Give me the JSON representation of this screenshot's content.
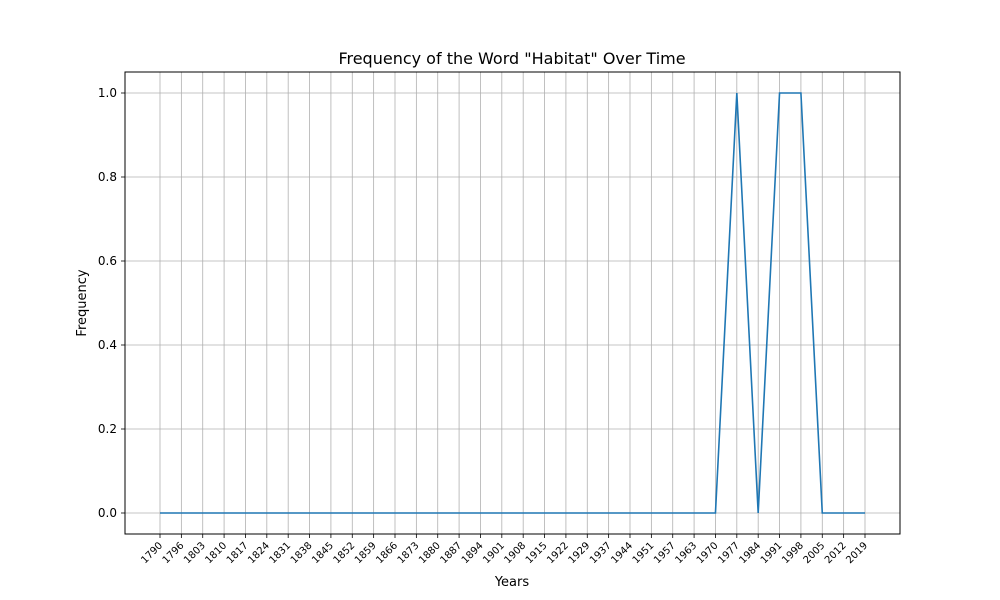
{
  "chart_data": {
    "type": "line",
    "title": "Frequency of the Word \"Habitat\" Over Time",
    "xlabel": "Years",
    "ylabel": "Frequency",
    "x": [
      "1790",
      "1796",
      "1803",
      "1810",
      "1817",
      "1824",
      "1831",
      "1838",
      "1845",
      "1852",
      "1859",
      "1866",
      "1873",
      "1880",
      "1887",
      "1894",
      "1901",
      "1908",
      "1915",
      "1922",
      "1929",
      "1937",
      "1944",
      "1951",
      "1957",
      "1963",
      "1970",
      "1977",
      "1984",
      "1991",
      "1998",
      "2005",
      "2012",
      "2019"
    ],
    "series": [
      {
        "color": "#1f77b4",
        "values": [
          0,
          0,
          0,
          0,
          0,
          0,
          0,
          0,
          0,
          0,
          0,
          0,
          0,
          0,
          0,
          0,
          0,
          0,
          0,
          0,
          0,
          0,
          0,
          0,
          0,
          0,
          0,
          1,
          0,
          1,
          1,
          0,
          0,
          0
        ]
      }
    ],
    "yticks": [
      "0.0",
      "0.2",
      "0.4",
      "0.6",
      "0.8",
      "1.0"
    ],
    "ylim": [
      -0.05,
      1.05
    ],
    "grid": true,
    "legend": "none"
  }
}
